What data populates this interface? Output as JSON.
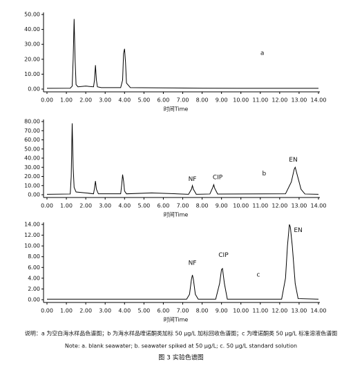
{
  "chart_data": [
    {
      "type": "line",
      "x_label": "时间Time",
      "xlim": [
        0,
        14
      ],
      "xticks": [
        {
          "value": 0,
          "label": "0.00"
        },
        {
          "value": 1,
          "label": "1.00"
        },
        {
          "value": 2,
          "label": "2.00"
        },
        {
          "value": 3,
          "label": "3.00"
        },
        {
          "value": 4,
          "label": "4.00"
        },
        {
          "value": 5,
          "label": "5.00"
        },
        {
          "value": 6,
          "label": "6.00"
        },
        {
          "value": 7,
          "label": "7.00"
        },
        {
          "value": 8,
          "label": "8.00"
        },
        {
          "value": 9,
          "label": "9.00"
        },
        {
          "value": 10,
          "label": "10.00"
        },
        {
          "value": 11,
          "label": "11.00"
        },
        {
          "value": 12,
          "label": "12.00"
        },
        {
          "value": 13,
          "label": "13.00"
        },
        {
          "value": 14,
          "label": "14.00"
        }
      ],
      "ylim": [
        0,
        50
      ],
      "yticks": [
        {
          "value": 0,
          "label": "0.00"
        },
        {
          "value": 10,
          "label": "10.00"
        },
        {
          "value": 20,
          "label": "20.00"
        },
        {
          "value": 30,
          "label": "30.00"
        },
        {
          "value": 40,
          "label": "40.00"
        },
        {
          "value": 50,
          "label": "50.00"
        }
      ],
      "color": "#000000",
      "x": [
        0,
        1.2,
        1.3,
        1.35,
        1.4,
        1.45,
        1.5,
        1.6,
        2.0,
        2.4,
        2.45,
        2.5,
        2.55,
        2.6,
        2.8,
        3.8,
        3.9,
        3.95,
        4.0,
        4.05,
        4.1,
        4.3,
        6,
        8,
        10,
        12,
        14
      ],
      "values": [
        0.5,
        0.6,
        2,
        20,
        47,
        20,
        3,
        1.5,
        2,
        1.5,
        6,
        16,
        6,
        1.5,
        1,
        1,
        6,
        24,
        27,
        18,
        4,
        1,
        0.8,
        0.6,
        0.5,
        0.5,
        0.5
      ],
      "annotations": [
        "a"
      ]
    },
    {
      "type": "line",
      "x_label": "时间Time",
      "xlim": [
        0,
        14
      ],
      "xticks": [
        {
          "value": 0,
          "label": "0.00"
        },
        {
          "value": 1,
          "label": "1.00"
        },
        {
          "value": 2,
          "label": "2.00"
        },
        {
          "value": 3,
          "label": "3.00"
        },
        {
          "value": 4,
          "label": "4.00"
        },
        {
          "value": 5,
          "label": "5.00"
        },
        {
          "value": 6,
          "label": "6.00"
        },
        {
          "value": 7,
          "label": "7.00"
        },
        {
          "value": 8,
          "label": "8.00"
        },
        {
          "value": 9,
          "label": "9.00"
        },
        {
          "value": 10,
          "label": "10.00"
        },
        {
          "value": 11,
          "label": "11.00"
        },
        {
          "value": 12,
          "label": "12.00"
        },
        {
          "value": 13,
          "label": "13.00"
        },
        {
          "value": 14,
          "label": "14.00"
        }
      ],
      "ylim": [
        0,
        80
      ],
      "yticks": [
        {
          "value": 0,
          "label": "0.00"
        },
        {
          "value": 10,
          "label": "10.00"
        },
        {
          "value": 20,
          "label": "20.00"
        },
        {
          "value": 30,
          "label": "30.00"
        },
        {
          "value": 40,
          "label": "40.00"
        },
        {
          "value": 50,
          "label": "50.00"
        },
        {
          "value": 60,
          "label": "60.00"
        },
        {
          "value": 70,
          "label": "70.00"
        },
        {
          "value": 80,
          "label": "80.00"
        }
      ],
      "color": "#000000",
      "x": [
        0,
        1.2,
        1.25,
        1.3,
        1.35,
        1.4,
        1.5,
        2.0,
        2.4,
        2.45,
        2.5,
        2.55,
        2.65,
        3.8,
        3.85,
        3.9,
        3.95,
        4.0,
        4.1,
        5.4,
        7.3,
        7.45,
        7.5,
        7.55,
        7.7,
        8.4,
        8.55,
        8.6,
        8.65,
        8.8,
        12.3,
        12.6,
        12.75,
        12.8,
        12.9,
        13.1,
        13.3,
        14
      ],
      "values": [
        0.5,
        0.8,
        20,
        78,
        30,
        8,
        3,
        2,
        1,
        7,
        15,
        6,
        1,
        1,
        10,
        22,
        15,
        4,
        1,
        2,
        0.5,
        6,
        10,
        6,
        0.5,
        0.8,
        8,
        11,
        7,
        0.8,
        1,
        14,
        28,
        30,
        22,
        6,
        0.8,
        0.5
      ],
      "annotations": [
        "NF",
        "CIP",
        "b",
        "EN"
      ]
    },
    {
      "type": "line",
      "x_label": "时间Time",
      "xlim": [
        0,
        14
      ],
      "xticks": [
        {
          "value": 0,
          "label": "0.00"
        },
        {
          "value": 1,
          "label": "1.00"
        },
        {
          "value": 2,
          "label": "2.00"
        },
        {
          "value": 3,
          "label": "3.00"
        },
        {
          "value": 4,
          "label": "4.00"
        },
        {
          "value": 5,
          "label": "5.00"
        },
        {
          "value": 6,
          "label": "6.00"
        },
        {
          "value": 7,
          "label": "7.00"
        },
        {
          "value": 8,
          "label": "8.00"
        },
        {
          "value": 9,
          "label": "9.00"
        },
        {
          "value": 10,
          "label": "10.00"
        },
        {
          "value": 11,
          "label": "11.00"
        },
        {
          "value": 12,
          "label": "12.00"
        },
        {
          "value": 13,
          "label": "13.00"
        },
        {
          "value": 14,
          "label": "14.00"
        }
      ],
      "ylim": [
        0,
        14
      ],
      "yticks": [
        {
          "value": 0,
          "label": "0.00"
        },
        {
          "value": 2,
          "label": "2.00"
        },
        {
          "value": 4,
          "label": "4.00"
        },
        {
          "value": 6,
          "label": "6.00"
        },
        {
          "value": 8,
          "label": "8.00"
        },
        {
          "value": 10,
          "label": "10.00"
        },
        {
          "value": 12,
          "label": "12.00"
        },
        {
          "value": 14,
          "label": "14.00"
        }
      ],
      "color": "#000000",
      "x": [
        0,
        7.2,
        7.35,
        7.45,
        7.5,
        7.55,
        7.65,
        7.8,
        8.7,
        8.9,
        9.0,
        9.05,
        9.15,
        9.3,
        12.1,
        12.3,
        12.4,
        12.5,
        12.55,
        12.65,
        12.8,
        12.95,
        14
      ],
      "values": [
        0.1,
        0.1,
        1,
        3.8,
        4.6,
        3.8,
        1,
        0.1,
        0.1,
        3,
        5.6,
        5.8,
        3,
        0.1,
        0.1,
        4,
        10,
        14,
        13.5,
        10,
        3,
        0.2,
        0.1
      ],
      "annotations": [
        "NF",
        "CIP",
        "c",
        "EN"
      ]
    }
  ],
  "caption": {
    "description": "说明：a 为空白海水样品色谱图；b 为海水样品喹诺酮类加标 50 μg/L 加标回收色谱图；c 为喹诺酮类 50 μg/L 标准溶液色谱图",
    "note": "Note: a. blank seawater; b. seawater spiked at 50 μg/L; c. 50 μg/L standard solution",
    "figure_title": "图 3  实验色谱图"
  }
}
